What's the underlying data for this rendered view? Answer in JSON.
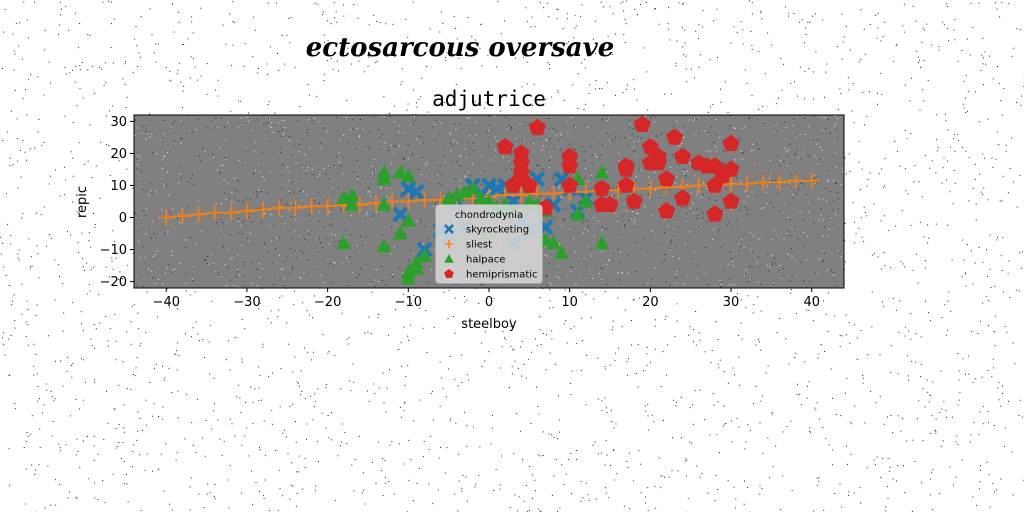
{
  "chart_data": {
    "type": "scatter",
    "suptitle": "ectosarcous oversave",
    "title": "adjutrice",
    "xlabel": "steelboy",
    "ylabel": "repic",
    "xlim": [
      -44,
      44
    ],
    "ylim": [
      -22,
      32
    ],
    "xticks": [
      -40,
      -30,
      -20,
      -10,
      0,
      10,
      20,
      30,
      40
    ],
    "yticks": [
      -20,
      -10,
      0,
      10,
      20,
      30
    ],
    "grid": false,
    "legend": {
      "title": "chondrodynia",
      "placement": "center"
    },
    "series": [
      {
        "name": "skyrocketing",
        "color": "#1f77b4",
        "marker": "x-filled",
        "points": [
          [
            -10,
            9
          ],
          [
            -9,
            8
          ],
          [
            -11,
            1
          ],
          [
            -6,
            -4
          ],
          [
            -5,
            -6
          ],
          [
            -4,
            5
          ],
          [
            -3,
            -3
          ],
          [
            -2,
            10
          ],
          [
            -1,
            7
          ],
          [
            0,
            10
          ],
          [
            1,
            9
          ],
          [
            2,
            10
          ],
          [
            3,
            5
          ],
          [
            4,
            -1
          ],
          [
            5,
            -4
          ],
          [
            6,
            12
          ],
          [
            7,
            -3
          ],
          [
            9,
            12
          ],
          [
            10,
            9
          ],
          [
            11,
            2
          ],
          [
            12,
            6
          ],
          [
            8,
            4
          ],
          [
            -8,
            -10
          ],
          [
            3,
            -8
          ]
        ]
      },
      {
        "name": "sliest",
        "color": "#ff7f0e",
        "marker": "plus",
        "points": [
          [
            -40,
            0
          ],
          [
            -38,
            0.5
          ],
          [
            -36,
            1
          ],
          [
            -34,
            1.5
          ],
          [
            -32,
            1.5
          ],
          [
            -30,
            2
          ],
          [
            -28,
            2.5
          ],
          [
            -26,
            3
          ],
          [
            -24,
            3
          ],
          [
            -22,
            3.5
          ],
          [
            -20,
            3.5
          ],
          [
            -18,
            4
          ],
          [
            -16,
            4
          ],
          [
            -14,
            4.5
          ],
          [
            -12,
            5
          ],
          [
            -10,
            5
          ],
          [
            -8,
            5.5
          ],
          [
            -6,
            5.5
          ],
          [
            -4,
            6
          ],
          [
            -2,
            6
          ],
          [
            0,
            6.5
          ],
          [
            2,
            7
          ],
          [
            4,
            7
          ],
          [
            6,
            7.5
          ],
          [
            8,
            7.5
          ],
          [
            10,
            8
          ],
          [
            12,
            8
          ],
          [
            14,
            8.5
          ],
          [
            16,
            8.5
          ],
          [
            18,
            9
          ],
          [
            20,
            9
          ],
          [
            22,
            9.5
          ],
          [
            24,
            9.5
          ],
          [
            26,
            10
          ],
          [
            28,
            10
          ],
          [
            30,
            10.5
          ],
          [
            32,
            10.5
          ],
          [
            34,
            11
          ],
          [
            36,
            11
          ],
          [
            38,
            11.5
          ],
          [
            40,
            11.5
          ]
        ]
      },
      {
        "name": "halpace",
        "color": "#2ca02c",
        "marker": "triangle",
        "points": [
          [
            -18,
            -8
          ],
          [
            -18,
            6
          ],
          [
            -17,
            7
          ],
          [
            -17,
            4
          ],
          [
            -13,
            14
          ],
          [
            -13,
            12
          ],
          [
            -13,
            4
          ],
          [
            -13,
            -9
          ],
          [
            -11,
            14
          ],
          [
            -11,
            -5
          ],
          [
            -10,
            13
          ],
          [
            -10,
            -1
          ],
          [
            -10,
            -17
          ],
          [
            -10,
            -19
          ],
          [
            -9,
            -16
          ],
          [
            -9,
            -14
          ],
          [
            -8,
            -12
          ],
          [
            -5,
            6
          ],
          [
            -4,
            7
          ],
          [
            -3,
            8
          ],
          [
            -2,
            9
          ],
          [
            -1,
            6
          ],
          [
            0,
            5
          ],
          [
            1,
            3
          ],
          [
            2,
            4
          ],
          [
            3,
            2
          ],
          [
            5,
            5
          ],
          [
            6,
            4
          ],
          [
            7,
            2
          ],
          [
            7,
            -7
          ],
          [
            8,
            -8
          ],
          [
            9,
            -11
          ],
          [
            11,
            1
          ],
          [
            11,
            12
          ],
          [
            12,
            5
          ],
          [
            14,
            -8
          ],
          [
            14,
            14
          ],
          [
            0,
            -5
          ]
        ]
      },
      {
        "name": "hemiprismatic",
        "color": "#d62728",
        "marker": "pentagon",
        "points": [
          [
            2,
            22
          ],
          [
            4,
            20
          ],
          [
            4,
            17
          ],
          [
            4,
            14
          ],
          [
            4,
            12
          ],
          [
            5,
            10
          ],
          [
            3,
            10
          ],
          [
            6,
            28
          ],
          [
            7,
            3
          ],
          [
            10,
            10
          ],
          [
            10,
            16
          ],
          [
            10,
            19
          ],
          [
            14,
            4
          ],
          [
            14,
            9
          ],
          [
            15,
            4
          ],
          [
            17,
            16
          ],
          [
            17,
            15
          ],
          [
            17,
            10
          ],
          [
            18,
            5
          ],
          [
            19,
            29
          ],
          [
            20,
            22
          ],
          [
            20,
            17
          ],
          [
            21,
            19
          ],
          [
            21,
            17
          ],
          [
            22,
            12
          ],
          [
            22,
            2
          ],
          [
            23,
            25
          ],
          [
            24,
            19
          ],
          [
            24,
            6
          ],
          [
            26,
            17
          ],
          [
            27,
            16
          ],
          [
            28,
            16
          ],
          [
            28,
            1
          ],
          [
            28,
            10
          ],
          [
            29,
            13
          ],
          [
            30,
            23
          ],
          [
            30,
            15
          ],
          [
            30,
            5
          ]
        ]
      }
    ]
  }
}
